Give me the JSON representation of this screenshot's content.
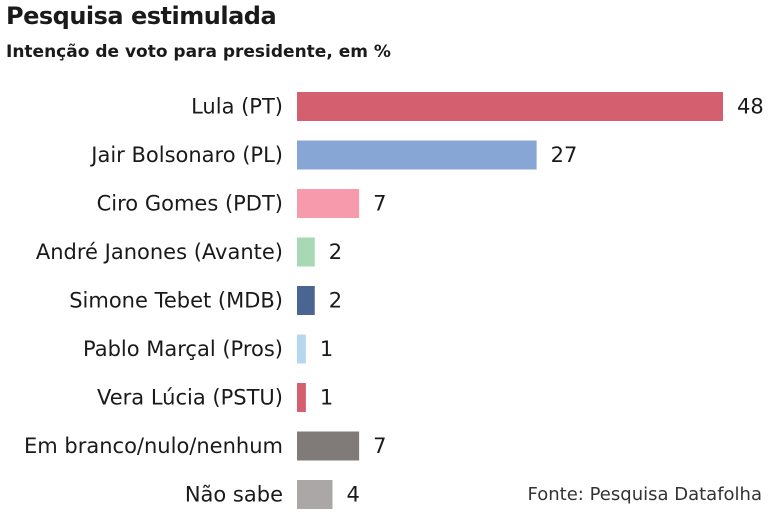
{
  "chart_data": {
    "type": "bar",
    "orientation": "horizontal",
    "title": "Pesquisa estimulada",
    "subtitle": "Intenção de voto para presidente, em %",
    "categories": [
      "Lula (PT)",
      "Jair Bolsonaro (PL)",
      "Ciro Gomes (PDT)",
      "André Janones (Avante)",
      "Simone Tebet (MDB)",
      "Pablo Marçal (Pros)",
      "Vera Lúcia (PSTU)",
      "Em branco/nulo/nenhum",
      "Não sabe"
    ],
    "values": [
      48,
      27,
      7,
      2,
      2,
      1,
      1,
      7,
      4
    ],
    "colors": [
      "#d45f6e",
      "#87a6d6",
      "#f79aac",
      "#a8d8b4",
      "#4a6592",
      "#b7d7ee",
      "#d45f6e",
      "#807b79",
      "#aaa7a6"
    ],
    "xlim": [
      0,
      48
    ],
    "grid": false,
    "legend": "none",
    "source": "Fonte: Pesquisa Datafolha"
  }
}
